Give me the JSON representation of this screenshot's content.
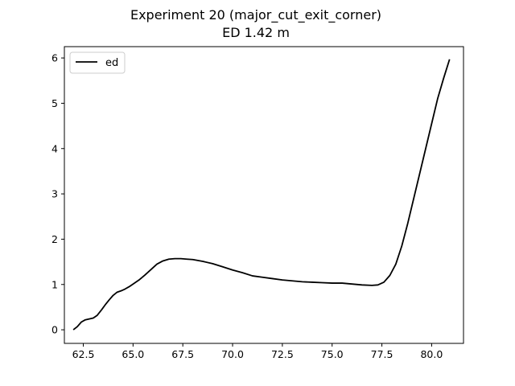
{
  "chart_data": {
    "type": "line",
    "title": "Experiment 20 (major_cut_exit_corner)",
    "subtitle": "ED 1.42 m",
    "xlabel": "",
    "ylabel": "",
    "xlim": [
      61.55,
      81.6
    ],
    "ylim": [
      -0.3,
      6.25
    ],
    "grid": false,
    "legend": {
      "placement": "top-left"
    },
    "x_ticks": [
      62.5,
      65.0,
      67.5,
      70.0,
      72.5,
      75.0,
      77.5,
      80.0
    ],
    "x_tick_labels": [
      "62.5",
      "65.0",
      "67.5",
      "70.0",
      "72.5",
      "75.0",
      "77.5",
      "80.0"
    ],
    "y_ticks": [
      0,
      1,
      2,
      3,
      4,
      5,
      6
    ],
    "y_tick_labels": [
      "0",
      "1",
      "2",
      "3",
      "4",
      "5",
      "6"
    ],
    "series": [
      {
        "name": "ed",
        "color": "#000000",
        "x": [
          62.0,
          62.2,
          62.4,
          62.6,
          62.8,
          63.0,
          63.2,
          63.4,
          63.6,
          63.8,
          64.0,
          64.2,
          64.4,
          64.6,
          64.8,
          65.0,
          65.3,
          65.6,
          65.9,
          66.2,
          66.5,
          66.8,
          67.1,
          67.4,
          67.7,
          68.0,
          68.5,
          69.0,
          69.5,
          70.0,
          70.5,
          71.0,
          71.5,
          72.0,
          72.5,
          73.0,
          73.5,
          74.0,
          74.5,
          75.0,
          75.5,
          76.0,
          76.5,
          77.0,
          77.3,
          77.6,
          77.9,
          78.2,
          78.5,
          78.8,
          79.1,
          79.4,
          79.7,
          80.0,
          80.3,
          80.6,
          80.9
        ],
        "y": [
          0.0,
          0.07,
          0.17,
          0.22,
          0.24,
          0.26,
          0.32,
          0.43,
          0.55,
          0.66,
          0.76,
          0.83,
          0.86,
          0.9,
          0.95,
          1.01,
          1.1,
          1.21,
          1.33,
          1.45,
          1.52,
          1.56,
          1.57,
          1.57,
          1.56,
          1.55,
          1.51,
          1.46,
          1.39,
          1.32,
          1.26,
          1.19,
          1.16,
          1.13,
          1.1,
          1.08,
          1.06,
          1.05,
          1.04,
          1.03,
          1.03,
          1.01,
          0.99,
          0.98,
          0.99,
          1.05,
          1.2,
          1.45,
          1.85,
          2.35,
          2.9,
          3.45,
          4.0,
          4.55,
          5.1,
          5.55,
          5.97
        ]
      }
    ]
  }
}
